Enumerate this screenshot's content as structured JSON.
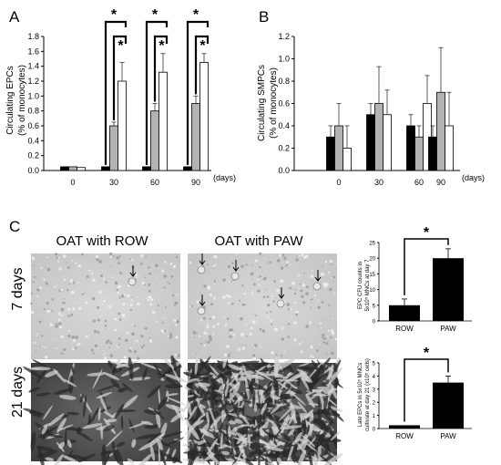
{
  "panels": {
    "a": "A",
    "b": "B",
    "c": "C"
  },
  "colors": {
    "black": "#000000",
    "gray": "#b3b3b3",
    "white": "#ffffff"
  },
  "chart_data": [
    {
      "type": "bar",
      "categories": [
        "0",
        "30",
        "60",
        "90"
      ],
      "x_unit": "(days)",
      "ylabel": "Circulating EPCs",
      "ylabel2": "(% of monocytes)",
      "ylim": [
        0,
        1.8
      ],
      "yticks": [
        "0.0",
        "0.2",
        "0.4",
        "0.6",
        "0.8",
        "1.0",
        "1.2",
        "1.4",
        "1.6",
        "1.8"
      ],
      "series": [
        {
          "values": [
            0.05,
            0.05,
            0.05,
            0.05
          ],
          "errors": [
            0.0,
            0.0,
            0.0,
            0.0
          ],
          "color": "#000000"
        },
        {
          "values": [
            0.05,
            0.6,
            0.8,
            0.9
          ],
          "errors": [
            0.0,
            0.05,
            0.1,
            0.1
          ],
          "color": "#b3b3b3"
        },
        {
          "values": [
            0.04,
            1.2,
            1.32,
            1.45
          ],
          "errors": [
            0.0,
            0.25,
            0.25,
            0.12
          ],
          "color": "#ffffff"
        }
      ],
      "annotations": [
        "*",
        "*",
        "*",
        "*",
        "*",
        "*"
      ]
    },
    {
      "type": "bar",
      "categories": [
        "0",
        "30",
        "60",
        "90"
      ],
      "x_unit": "(days)",
      "ylabel": "Circulating SMPCs",
      "ylabel2": "(% of monocytes)",
      "ylim": [
        0,
        1.2
      ],
      "yticks": [
        "0.0",
        "0.2",
        "0.4",
        "0.6",
        "0.8",
        "1.0",
        "1.2"
      ],
      "series": [
        {
          "values": [
            0.3,
            0.5,
            0.4,
            0.3
          ],
          "errors": [
            0.1,
            0.1,
            0.1,
            0.1
          ],
          "color": "#000000"
        },
        {
          "values": [
            0.4,
            0.6,
            0.3,
            0.7
          ],
          "errors": [
            0.2,
            0.33,
            0.1,
            0.4
          ],
          "color": "#b3b3b3"
        },
        {
          "values": [
            0.2,
            0.5,
            0.6,
            0.4
          ],
          "errors": [
            0.2,
            0.22,
            0.25,
            0.3
          ],
          "color": "#ffffff"
        }
      ]
    },
    {
      "type": "bar",
      "categories": [
        "ROW",
        "PAW"
      ],
      "ylabel": "EPC CFU counts in",
      "ylabel2": "5x10⁵ MNCs at day 7",
      "ylim": [
        0,
        25
      ],
      "yticks": [
        "0",
        "5",
        "10",
        "15",
        "20",
        "25"
      ],
      "values": [
        5,
        20
      ],
      "errors": [
        2,
        3
      ],
      "annotation": "*"
    },
    {
      "type": "bar",
      "categories": [
        "ROW",
        "PAW"
      ],
      "ylabel": "Late EPCs in 5x10⁵ MNCs",
      "ylabel2": "cultivate at day 21 (x10⁵ cells)",
      "ylim": [
        0,
        5
      ],
      "yticks": [
        "0",
        "1",
        "2",
        "3",
        "4",
        "5"
      ],
      "values": [
        0.25,
        3.5
      ],
      "errors": [
        0.0,
        0.5
      ],
      "annotation": "*"
    }
  ],
  "micrographs": {
    "col1_title": "OAT with ROW",
    "col2_title": "OAT with PAW",
    "row1_label": "7 days",
    "row2_label": "21 days"
  }
}
